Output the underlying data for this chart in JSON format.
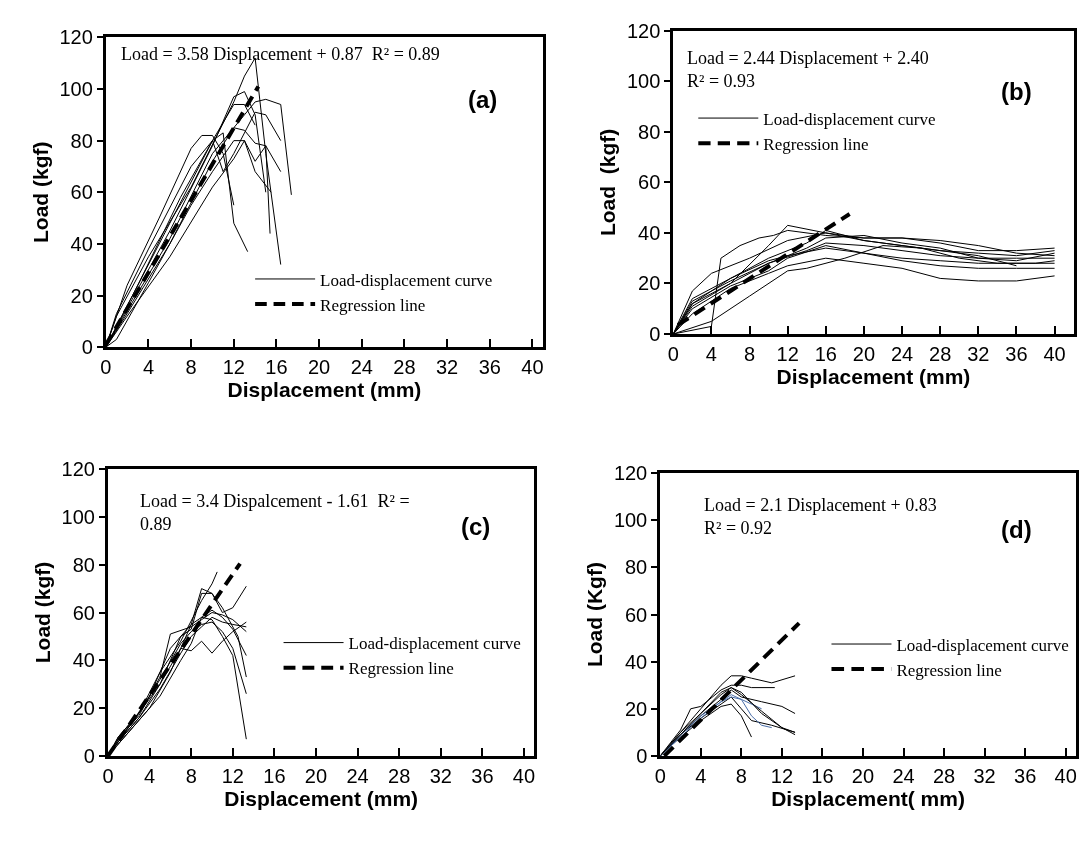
{
  "chart_data": [
    {
      "type": "line",
      "xlabel": "Displacement (mm)",
      "ylabel": "Load (kgf)",
      "xlim": [
        0,
        41
      ],
      "ylim": [
        0,
        120
      ],
      "xticks": [
        0,
        4,
        8,
        12,
        16,
        20,
        24,
        28,
        32,
        36,
        40
      ],
      "yticks": [
        0,
        20,
        40,
        60,
        80,
        100,
        120
      ],
      "legend": "bottom right",
      "annotations": [
        "Load = 3.58 Displacement + 0.87  R² = 0.89",
        "(a)"
      ],
      "series": [
        {
          "name": "Load-displacement curve",
          "color": "#000000",
          "x": [
            0,
            1,
            4,
            8,
            12,
            13,
            14,
            15,
            16.4
          ],
          "values": [
            0,
            12,
            35,
            62,
            95,
            105,
            112,
            75,
            32
          ]
        },
        {
          "color": "#000000",
          "x": [
            0,
            2,
            5,
            8,
            9,
            10,
            11,
            12
          ],
          "values": [
            0,
            24,
            50,
            77,
            82,
            82,
            75,
            55
          ]
        },
        {
          "color": "#000000",
          "x": [
            0,
            1,
            4,
            8,
            10,
            11,
            12,
            13.3
          ],
          "values": [
            0,
            13,
            38,
            70,
            80,
            83,
            48,
            37
          ]
        },
        {
          "color": "#000000",
          "x": [
            0,
            2,
            6,
            10,
            12,
            13,
            14,
            15
          ],
          "values": [
            0,
            15,
            45,
            78,
            97,
            99,
            90,
            60
          ]
        },
        {
          "color": "#000000",
          "x": [
            0,
            2,
            6,
            10,
            12,
            13,
            14,
            15,
            16.4,
            17.4
          ],
          "values": [
            0,
            14,
            42,
            75,
            85,
            90,
            95,
            96,
            94,
            59
          ]
        },
        {
          "color": "#000000",
          "x": [
            0,
            2,
            6,
            10,
            12,
            13,
            14,
            15,
            16.4
          ],
          "values": [
            0,
            12,
            35,
            62,
            73,
            80,
            72,
            78,
            68
          ]
        },
        {
          "color": "#000000",
          "x": [
            0,
            2,
            6,
            10,
            12,
            13,
            14,
            15,
            15.4
          ],
          "values": [
            0,
            13,
            40,
            72,
            85,
            84,
            79,
            78,
            44
          ]
        },
        {
          "color": "#000000",
          "x": [
            0,
            1,
            4,
            8,
            10,
            12,
            13,
            14,
            15.5
          ],
          "values": [
            0,
            3,
            25,
            55,
            68,
            80,
            80,
            68,
            60
          ]
        },
        {
          "color": "#000000",
          "x": [
            0,
            2,
            6,
            10,
            11,
            12,
            14,
            15,
            16.4
          ],
          "values": [
            0,
            16,
            48,
            80,
            68,
            75,
            91,
            90,
            80
          ]
        },
        {
          "color": "#000000",
          "x": [
            0,
            3,
            7,
            10,
            12,
            13,
            14
          ],
          "values": [
            0,
            24,
            58,
            80,
            94,
            94,
            86
          ]
        },
        {
          "name": "Regression line",
          "color": "#000000",
          "line_style": "dashed",
          "x": [
            0,
            14.3
          ],
          "values": [
            0.9,
            101
          ]
        }
      ]
    },
    {
      "type": "line",
      "xlabel": "Displacement (mm)",
      "ylabel": "Load  (kgf)",
      "xlim": [
        0,
        42
      ],
      "ylim": [
        0,
        120
      ],
      "xticks": [
        0,
        4,
        8,
        12,
        16,
        20,
        24,
        28,
        32,
        36,
        40
      ],
      "yticks": [
        0,
        20,
        40,
        60,
        80,
        100,
        120
      ],
      "legend": "top left",
      "annotations": [
        "Load = 2.44 Displacement + 2.40 R² = 0.93",
        "(b)"
      ],
      "series": [
        {
          "name": "Load-displacement curve",
          "color": "#000000",
          "x": [
            0,
            4,
            5,
            7,
            9,
            10.5,
            12,
            16,
            20,
            24,
            28,
            32,
            36,
            40
          ],
          "values": [
            0,
            3,
            30,
            35,
            38,
            39,
            41,
            39,
            38,
            38,
            36,
            33,
            33,
            34
          ]
        },
        {
          "color": "#000000",
          "x": [
            0,
            2,
            4,
            8,
            12,
            16,
            20,
            24,
            28,
            32,
            36,
            40
          ],
          "values": [
            0,
            17,
            24,
            30,
            37,
            40,
            37,
            35,
            33,
            32,
            31,
            33
          ]
        },
        {
          "color": "#000000",
          "x": [
            0,
            2,
            6,
            10,
            12,
            16,
            20,
            24,
            28,
            32,
            36,
            40
          ],
          "values": [
            0,
            12,
            20,
            35,
            43,
            40,
            38,
            38,
            37,
            35,
            32,
            31
          ]
        },
        {
          "color": "#000000",
          "x": [
            0,
            2,
            6,
            10,
            12,
            16,
            20,
            24,
            28,
            32,
            36,
            40
          ],
          "values": [
            0,
            10,
            19,
            25,
            30,
            35,
            32,
            30,
            29,
            28,
            28,
            28
          ]
        },
        {
          "color": "#000000",
          "x": [
            0,
            2,
            6,
            10,
            12,
            16,
            20,
            24,
            28,
            32,
            36,
            40
          ],
          "values": [
            0,
            8,
            18,
            24,
            27,
            30,
            28,
            26,
            22,
            21,
            21,
            23
          ]
        },
        {
          "color": "#000000",
          "x": [
            0,
            4,
            8,
            12,
            14,
            18,
            22,
            26,
            30,
            34,
            38,
            40
          ],
          "values": [
            0,
            5,
            15,
            25,
            26,
            30,
            35,
            34,
            30,
            28,
            28,
            29
          ]
        },
        {
          "color": "#000000",
          "x": [
            0,
            2,
            6,
            10,
            14,
            16,
            20,
            24,
            28,
            32,
            36,
            40
          ],
          "values": [
            0,
            11,
            20,
            28,
            33,
            36,
            35,
            33,
            31,
            30,
            30,
            30
          ]
        },
        {
          "color": "#000000",
          "x": [
            0,
            2,
            6,
            10,
            12,
            16,
            20,
            24,
            28,
            32,
            36,
            40
          ],
          "values": [
            0,
            12,
            22,
            29,
            31,
            34,
            32,
            29,
            27,
            26,
            26,
            26
          ]
        },
        {
          "color": "#000000",
          "x": [
            0,
            2,
            6,
            10,
            14,
            16,
            20,
            24,
            28,
            32,
            36,
            40
          ],
          "values": [
            0,
            13,
            21,
            28,
            34,
            38,
            39,
            36,
            34,
            30,
            29,
            32
          ]
        },
        {
          "color": "#000000",
          "x": [
            0,
            2,
            6,
            10,
            14,
            16,
            20,
            24,
            28,
            32,
            36
          ],
          "values": [
            0,
            14,
            22,
            30,
            36,
            41,
            37,
            35,
            33,
            31,
            27
          ]
        },
        {
          "name": "Regression line",
          "color": "#000000",
          "line_style": "dashed",
          "x": [
            0.5,
            18.5
          ],
          "values": [
            3.6,
            47.5
          ]
        }
      ]
    },
    {
      "type": "line",
      "xlabel": "Displacement (mm)",
      "ylabel": "Load (kgf)",
      "xlim": [
        0,
        41
      ],
      "ylim": [
        0,
        120
      ],
      "xticks": [
        0,
        4,
        8,
        12,
        16,
        20,
        24,
        28,
        32,
        36,
        40
      ],
      "yticks": [
        0,
        20,
        40,
        60,
        80,
        100,
        120
      ],
      "legend": "right",
      "annotations": [
        "Load = 3.4 Dispalcement - 1.61  R² = 0.89",
        "(c)"
      ],
      "series": [
        {
          "name": "Load-displacement curve",
          "color": "#000000",
          "x": [
            0,
            1,
            3,
            5,
            7,
            9,
            10,
            10.5
          ],
          "values": [
            0,
            8,
            18,
            35,
            48,
            65,
            72,
            77
          ]
        },
        {
          "color": "#000000",
          "x": [
            0,
            1,
            3,
            5,
            7,
            8,
            9,
            10,
            11,
            12.5,
            13.3
          ],
          "values": [
            0,
            6,
            16,
            30,
            50,
            53,
            68,
            68,
            62,
            50,
            33
          ]
        },
        {
          "color": "#000000",
          "x": [
            0,
            1,
            3,
            5,
            6,
            8,
            9,
            10,
            11,
            12,
            13.3
          ],
          "values": [
            0,
            7,
            17,
            33,
            51,
            54,
            57,
            60,
            59,
            57,
            52
          ]
        },
        {
          "color": "#000000",
          "x": [
            0,
            1,
            3,
            5,
            7,
            8,
            9,
            10,
            11,
            12,
            13.3
          ],
          "values": [
            0,
            5,
            15,
            25,
            40,
            47,
            58,
            61,
            58,
            53,
            42
          ]
        },
        {
          "color": "#000000",
          "x": [
            0,
            2,
            4,
            6,
            7,
            8,
            9,
            10,
            11,
            12,
            13.3
          ],
          "values": [
            0,
            10,
            20,
            35,
            45,
            44,
            48,
            43,
            48,
            52,
            56
          ]
        },
        {
          "color": "#000000",
          "x": [
            0,
            1,
            3,
            5,
            7,
            8,
            9,
            10,
            11,
            12,
            13.3
          ],
          "values": [
            0,
            7,
            18,
            30,
            45,
            55,
            58,
            57,
            50,
            42,
            7
          ]
        },
        {
          "color": "#000000",
          "x": [
            0,
            1,
            3,
            5,
            7,
            8,
            9,
            10,
            11,
            12,
            13.3
          ],
          "values": [
            0,
            6,
            16,
            28,
            43,
            50,
            54,
            58,
            56,
            55,
            54
          ]
        },
        {
          "color": "#000000",
          "x": [
            0,
            2,
            4,
            6,
            8,
            9,
            10,
            11,
            12,
            13.3
          ],
          "values": [
            0,
            12,
            25,
            45,
            55,
            70,
            68,
            60,
            62,
            71
          ]
        },
        {
          "color": "#000000",
          "x": [
            0,
            1,
            3,
            5,
            7,
            8,
            9,
            10,
            11,
            12,
            13.3
          ],
          "values": [
            0,
            8,
            18,
            32,
            47,
            52,
            55,
            56,
            52,
            45,
            26
          ]
        },
        {
          "name": "Regression line",
          "color": "#000000",
          "line_style": "dashed",
          "x": [
            0,
            12.7
          ],
          "values": [
            0,
            80.5
          ]
        }
      ]
    },
    {
      "type": "line",
      "xlabel": "Displacement( mm)",
      "ylabel": "Load (Kgf)",
      "xlim": [
        0,
        41
      ],
      "ylim": [
        0,
        120
      ],
      "xticks": [
        0,
        4,
        8,
        12,
        16,
        20,
        24,
        28,
        32,
        36,
        40
      ],
      "yticks": [
        0,
        20,
        40,
        60,
        80,
        100,
        120
      ],
      "legend": "right",
      "annotations": [
        "Load = 2.1 Displacement + 0.83 R² = 0.92",
        "(d)"
      ],
      "series": [
        {
          "name": "Load-displacement curve",
          "color": "#000000",
          "x": [
            0,
            2,
            4,
            6,
            7,
            8,
            9,
            11,
            13.3
          ],
          "values": [
            0,
            10,
            20,
            30,
            34,
            34,
            33,
            31,
            34
          ]
        },
        {
          "color": "#000000",
          "x": [
            0,
            2,
            3,
            4,
            6,
            7,
            8,
            9,
            11.3
          ],
          "values": [
            0,
            11,
            20,
            21,
            28,
            30,
            30,
            29,
            29
          ]
        },
        {
          "color": "#000000",
          "x": [
            0,
            2,
            4,
            6,
            7,
            8,
            10,
            12,
            13.3
          ],
          "values": [
            0,
            9,
            17,
            24,
            28,
            25,
            23,
            21,
            18
          ]
        },
        {
          "color": "#000000",
          "x": [
            0,
            2,
            4,
            6,
            7,
            8,
            9,
            11,
            13.3
          ],
          "values": [
            0,
            9,
            16,
            22,
            25,
            20,
            15,
            13,
            10
          ]
        },
        {
          "color": "#000000",
          "x": [
            0,
            2,
            4,
            6,
            7,
            8,
            10,
            12,
            13.3
          ],
          "values": [
            0,
            10,
            18,
            27,
            29,
            27,
            18,
            12,
            9
          ]
        },
        {
          "color": "#000000",
          "x": [
            0,
            2,
            4,
            6,
            7,
            8,
            9
          ],
          "values": [
            0,
            8,
            15,
            21,
            22,
            17,
            8
          ]
        },
        {
          "color": "#4a6ea8",
          "x": [
            0,
            2,
            4,
            6,
            7,
            8,
            9,
            10,
            11
          ],
          "values": [
            0,
            9,
            17,
            23,
            26,
            24,
            17,
            13,
            12
          ]
        },
        {
          "color": "#4a6ea8",
          "x": [
            0,
            2,
            4,
            6,
            7,
            8,
            9,
            10
          ],
          "values": [
            0,
            8,
            16,
            23,
            25,
            24,
            22,
            20
          ]
        },
        {
          "color": "#000000",
          "x": [
            0,
            2,
            4,
            6,
            7,
            8,
            10,
            12,
            13.3
          ],
          "values": [
            0,
            9,
            18,
            26,
            29,
            26,
            19,
            12,
            10
          ]
        },
        {
          "name": "Regression line",
          "color": "#000000",
          "line_style": "dashed",
          "x": [
            0.4,
            13.7
          ],
          "values": [
            0,
            56.4
          ]
        }
      ]
    }
  ]
}
